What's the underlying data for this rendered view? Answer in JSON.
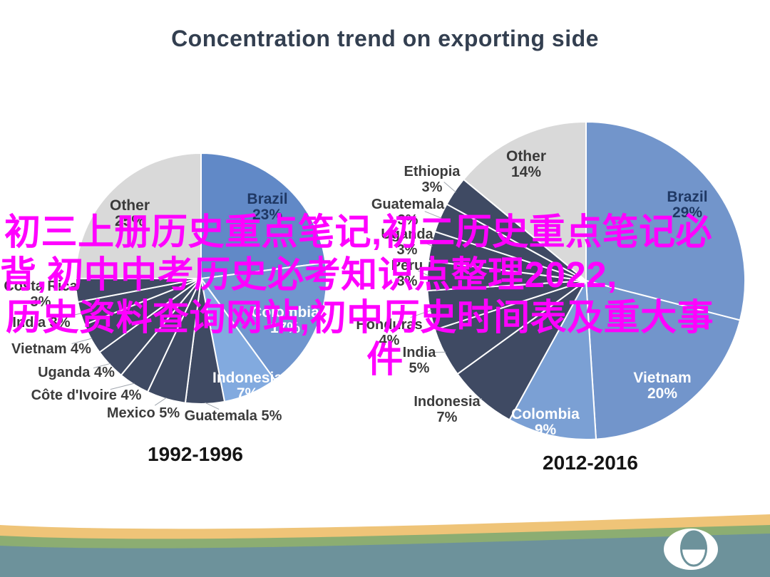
{
  "title": "Concentration trend on exporting side",
  "watermark": {
    "color": "#FF00FF",
    "lines": [
      "初三上册历史重点笔记,初二历史重点笔记必",
      "背,初中中考历史必考知识点整理2022,",
      "历史资料查询网站,初中历史时间表及重大事",
      "件"
    ]
  },
  "chart_data": [
    {
      "type": "pie",
      "title": "1992-1996",
      "unit": "%",
      "legend_position": "none",
      "slices": [
        {
          "label": "Brazil",
          "value": 23,
          "color": "#6189C7",
          "label_color": "#1F3864",
          "placement": "inside"
        },
        {
          "label": "Colombia",
          "value": 17,
          "color": "#7096CE",
          "label_color": "#FFFFFF",
          "placement": "inside"
        },
        {
          "label": "Indonesia",
          "value": 7,
          "color": "#82AADF",
          "label_color": "#FFFFFF",
          "placement": "inside"
        },
        {
          "label": "Guatemala",
          "value": 5,
          "color": "#3F4A63",
          "label_color": "#3C3C3C",
          "placement": "outside"
        },
        {
          "label": "Mexico",
          "value": 5,
          "color": "#3F4A63",
          "label_color": "#3C3C3C",
          "placement": "outside"
        },
        {
          "label": "Côte d'Ivoire",
          "value": 4,
          "color": "#3F4A63",
          "label_color": "#3C3C3C",
          "placement": "outside"
        },
        {
          "label": "Uganda",
          "value": 4,
          "color": "#3F4A63",
          "label_color": "#3C3C3C",
          "placement": "outside"
        },
        {
          "label": "Vietnam",
          "value": 4,
          "color": "#3F4A63",
          "label_color": "#3C3C3C",
          "placement": "outside"
        },
        {
          "label": "India",
          "value": 3,
          "color": "#3F4A63",
          "label_color": "#3C3C3C",
          "placement": "outside"
        },
        {
          "label": "Costa Rica",
          "value": 3,
          "color": "#3F4A63",
          "label_color": "#3C3C3C",
          "placement": "outside"
        },
        {
          "label": "Other",
          "value": 25,
          "color": "#D9D9D9",
          "label_color": "#3A3A3A",
          "placement": "inside"
        }
      ]
    },
    {
      "type": "pie",
      "title": "2012-2016",
      "unit": "%",
      "legend_position": "none",
      "slices": [
        {
          "label": "Brazil",
          "value": 29,
          "color": "#7295CB",
          "label_color": "#1F3864",
          "placement": "inside"
        },
        {
          "label": "Vietnam",
          "value": 20,
          "color": "#7295CB",
          "label_color": "#FFFFFF",
          "placement": "inside"
        },
        {
          "label": "Colombia",
          "value": 9,
          "color": "#7BA0D4",
          "label_color": "#FFFFFF",
          "placement": "inside"
        },
        {
          "label": "Indonesia",
          "value": 7,
          "color": "#3F4A63",
          "label_color": "#3C3C3C",
          "placement": "outside"
        },
        {
          "label": "India",
          "value": 5,
          "color": "#3F4A63",
          "label_color": "#3C3C3C",
          "placement": "outside"
        },
        {
          "label": "Honduras",
          "value": 4,
          "color": "#3F4A63",
          "label_color": "#3C3C3C",
          "placement": "outside"
        },
        {
          "label": "Peru",
          "value": 3,
          "color": "#3F4A63",
          "label_color": "#3C3C3C",
          "placement": "outside"
        },
        {
          "label": "Uganda",
          "value": 3,
          "color": "#3F4A63",
          "label_color": "#3C3C3C",
          "placement": "outside"
        },
        {
          "label": "Guatemala",
          "value": 3,
          "color": "#3F4A63",
          "label_color": "#3C3C3C",
          "placement": "outside"
        },
        {
          "label": "Ethiopia",
          "value": 3,
          "color": "#3F4A63",
          "label_color": "#3C3C3C",
          "placement": "outside"
        },
        {
          "label": "Other",
          "value": 14,
          "color": "#D9D9D9",
          "label_color": "#3A3A3A",
          "placement": "inside"
        }
      ]
    }
  ],
  "footer": {
    "stripe_colors": {
      "yellow": "#EFC478",
      "green": "#8CAD72",
      "teal": "#6D929B"
    },
    "logo": "bean-logo"
  }
}
